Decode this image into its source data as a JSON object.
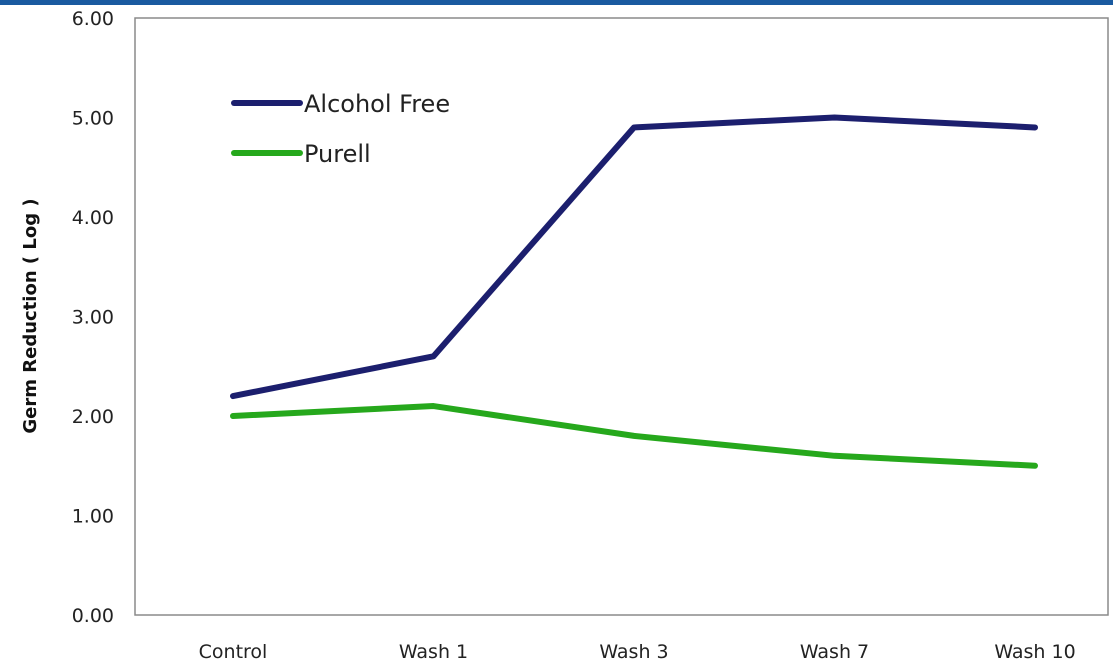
{
  "chart_data": {
    "type": "line",
    "title": "",
    "xlabel": "",
    "ylabel": "Germ Reduction ( Log )",
    "categories": [
      "Control",
      "Wash 1",
      "Wash 3",
      "Wash 7",
      "Wash 10"
    ],
    "ylim": [
      0,
      6
    ],
    "yticks": [
      "0.00",
      "1.00",
      "2.00",
      "3.00",
      "4.00",
      "5.00",
      "6.00"
    ],
    "grid": false,
    "legend_position": "top-left",
    "series": [
      {
        "name": "Alcohol Free",
        "color": "#1c1f6e",
        "values": [
          2.2,
          2.6,
          4.9,
          5.0,
          4.9
        ]
      },
      {
        "name": "Purell",
        "color": "#26a81c",
        "values": [
          2.0,
          2.1,
          1.8,
          1.6,
          1.5
        ]
      }
    ]
  }
}
